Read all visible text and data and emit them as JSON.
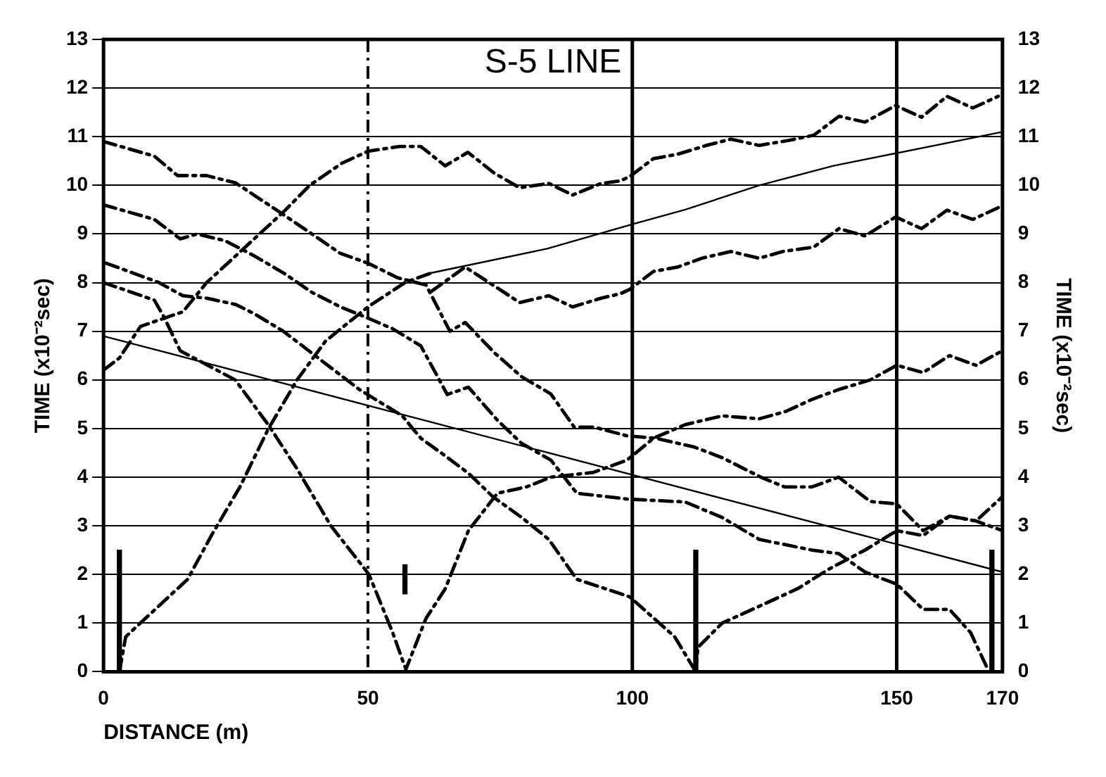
{
  "chart_data": {
    "type": "line",
    "title": "S-5 LINE",
    "xlabel": "DISTANCE (m)",
    "ylabel": "TIME (x10⁻²sec)",
    "y2label": "TIME (x10⁻²sec)",
    "xlim": [
      0,
      170
    ],
    "xticks": [
      0,
      50,
      100,
      150,
      170
    ],
    "ylim": [
      0,
      13
    ],
    "yticks": [
      0,
      1,
      2,
      3,
      4,
      5,
      6,
      7,
      8,
      9,
      10,
      11,
      12,
      13
    ],
    "y2lim": [
      0,
      13
    ],
    "y2ticks": [
      0,
      1,
      2,
      3,
      4,
      5,
      6,
      7,
      8,
      9,
      10,
      11,
      12,
      13
    ],
    "grid": "y",
    "legend": false,
    "marker": "none",
    "ref_lines": [
      {
        "axis": "x",
        "value": 50,
        "line_style": "dashed",
        "color": "#000000"
      },
      {
        "axis": "x",
        "value": 100,
        "line_style": "solid",
        "color": "#000000"
      },
      {
        "axis": "x",
        "value": 150,
        "line_style": "solid",
        "color": "#000000"
      }
    ],
    "series": [
      {
        "color": "#000000",
        "line_style": "dashed",
        "x": [
          0,
          3,
          7,
          15,
          19.5,
          25,
          34,
          39,
          45,
          50,
          56,
          60,
          64.6,
          68.9,
          73.9,
          78.7,
          84.2,
          88.7,
          94.1,
          97.7,
          99.5,
          104,
          108.6,
          114,
          118.6,
          124,
          129.4,
          134.3,
          139.1,
          144,
          149.8,
          154.7,
          159.5,
          164.4,
          169.2
        ],
        "values": [
          6.2,
          6.45,
          7.1,
          7.4,
          8,
          8.55,
          9.45,
          10,
          10.45,
          10.7,
          10.8,
          10.8,
          10.4,
          10.68,
          10.25,
          9.95,
          10.04,
          9.8,
          10.04,
          10.09,
          10.18,
          10.55,
          10.64,
          10.82,
          10.95,
          10.82,
          10.92,
          11.03,
          11.42,
          11.3,
          11.64,
          11.4,
          11.83,
          11.59,
          11.83
        ]
      },
      {
        "color": "#000000",
        "line_style": "dashed",
        "x": [
          3,
          4.2,
          15.9,
          20.4,
          25.8,
          31.2,
          36.6,
          42,
          50,
          57,
          62
        ],
        "values": [
          0,
          0.72,
          1.9,
          2.8,
          3.8,
          5,
          6,
          6.8,
          7.5,
          8,
          8.2
        ]
      },
      {
        "color": "#000000",
        "line_style": "solid",
        "x": [
          62,
          84,
          100,
          110,
          124,
          138,
          170
        ],
        "values": [
          8.2,
          8.7,
          9.2,
          9.5,
          10,
          10.4,
          11.1
        ]
      },
      {
        "color": "#000000",
        "line_style": "dashed",
        "x": [
          0,
          9.6,
          14,
          19.5,
          25,
          27.6,
          34,
          39.4,
          44.8,
          50,
          55.6,
          61,
          65.5,
          68.4,
          74,
          79,
          84.6,
          89,
          92.7,
          99,
          104.4,
          111.7,
          117,
          124.3,
          128.8,
          134,
          139,
          145,
          150,
          155,
          160,
          165,
          170
        ],
        "values": [
          10.9,
          10.6,
          10.2,
          10.2,
          10.05,
          9.86,
          9.4,
          9,
          8.6,
          8.4,
          8.1,
          7.95,
          7,
          7.18,
          6.55,
          6.07,
          5.71,
          5.03,
          5.03,
          4.85,
          4.8,
          4.62,
          4.4,
          4,
          3.8,
          3.8,
          4,
          3.5,
          3.45,
          2.9,
          3.2,
          3.1,
          2.9
        ]
      },
      {
        "color": "#000000",
        "line_style": "dashed",
        "x": [
          62,
          68.4,
          74.2,
          78.7,
          84.2,
          88.7,
          94.1,
          97.7,
          99.5,
          104,
          108.6,
          113.1,
          118.6,
          124,
          128.5,
          134.3,
          139.1,
          144,
          149.8,
          154.7,
          159.5,
          164.4,
          169.2
        ],
        "values": [
          7.82,
          8.32,
          7.91,
          7.59,
          7.73,
          7.5,
          7.68,
          7.77,
          7.86,
          8.23,
          8.32,
          8.5,
          8.64,
          8.5,
          8.64,
          8.73,
          9.11,
          8.96,
          9.35,
          9.11,
          9.49,
          9.3,
          9.54
        ]
      },
      {
        "color": "#000000",
        "line_style": "dashed",
        "x": [
          0,
          9.6,
          11.4,
          14.5,
          24.9,
          31.2,
          36.6,
          43,
          50.2,
          54.7,
          57
        ],
        "values": [
          8,
          7.64,
          7.3,
          6.6,
          6,
          5.07,
          4.17,
          3,
          2,
          0.8,
          0.1
        ]
      },
      {
        "color": "#000000",
        "line_style": "dashed",
        "x": [
          57,
          61,
          64.6,
          69,
          74.5,
          80,
          84.6,
          92.7,
          99,
          104,
          110,
          117,
          124,
          129,
          134,
          139,
          145,
          150,
          155,
          160,
          165,
          170
        ],
        "values": [
          0,
          1.1,
          1.7,
          2.9,
          3.67,
          3.8,
          4,
          4.1,
          4.35,
          4.8,
          5.08,
          5.26,
          5.2,
          5.35,
          5.6,
          5.8,
          6,
          6.3,
          6.15,
          6.5,
          6.3,
          6.6
        ]
      },
      {
        "color": "#000000",
        "line_style": "dashed",
        "x": [
          0.5,
          10.5,
          15,
          19.5,
          25,
          28.5,
          34,
          48.4,
          56.5,
          60,
          64.6,
          69,
          73.6,
          79.1,
          84.2,
          89.5,
          99.5,
          108,
          112
        ],
        "values": [
          8.4,
          8,
          7.73,
          7.68,
          7.55,
          7.36,
          7,
          5.8,
          5.26,
          4.8,
          4.44,
          4.08,
          3.6,
          3.17,
          2.72,
          1.9,
          1.54,
          0.72,
          0
        ]
      },
      {
        "color": "#000000",
        "line_style": "dashed",
        "x": [
          112,
          112.4,
          117,
          124.3,
          131.5,
          137,
          144,
          150,
          155,
          160,
          165,
          170
        ],
        "values": [
          0,
          0.5,
          1,
          1.36,
          1.72,
          2.1,
          2.5,
          2.9,
          2.8,
          3.2,
          3.1,
          3.6
        ]
      },
      {
        "color": "#000000",
        "line_style": "dashed",
        "x": [
          0,
          9.6,
          14.5,
          17.7,
          23,
          28.5,
          34,
          39.4,
          44.8,
          50,
          54.7,
          60,
          63,
          65,
          69,
          74.5,
          79,
          84.6,
          89.5,
          99,
          110,
          117,
          124,
          134,
          139,
          144,
          150,
          155,
          160,
          164,
          167
        ],
        "values": [
          9.6,
          9.3,
          8.9,
          9,
          8.86,
          8.55,
          8.2,
          7.8,
          7.5,
          7.27,
          7.05,
          6.7,
          6.1,
          5.7,
          5.85,
          5.17,
          4.7,
          4.35,
          3.67,
          3.55,
          3.49,
          3.17,
          2.72,
          2.5,
          2.43,
          2.05,
          1.8,
          1.28,
          1.28,
          0.8,
          0.1
        ]
      },
      {
        "color": "#000000",
        "line_style": "solid",
        "x": [
          0,
          170
        ],
        "values": [
          6.9,
          2.05
        ]
      },
      {
        "type": "bar",
        "color": "#000000",
        "x": [
          3,
          57,
          112,
          168
        ],
        "base": [
          0,
          1.6,
          0,
          0
        ],
        "values": [
          2.5,
          0.6,
          2.5,
          2.5
        ]
      }
    ]
  }
}
